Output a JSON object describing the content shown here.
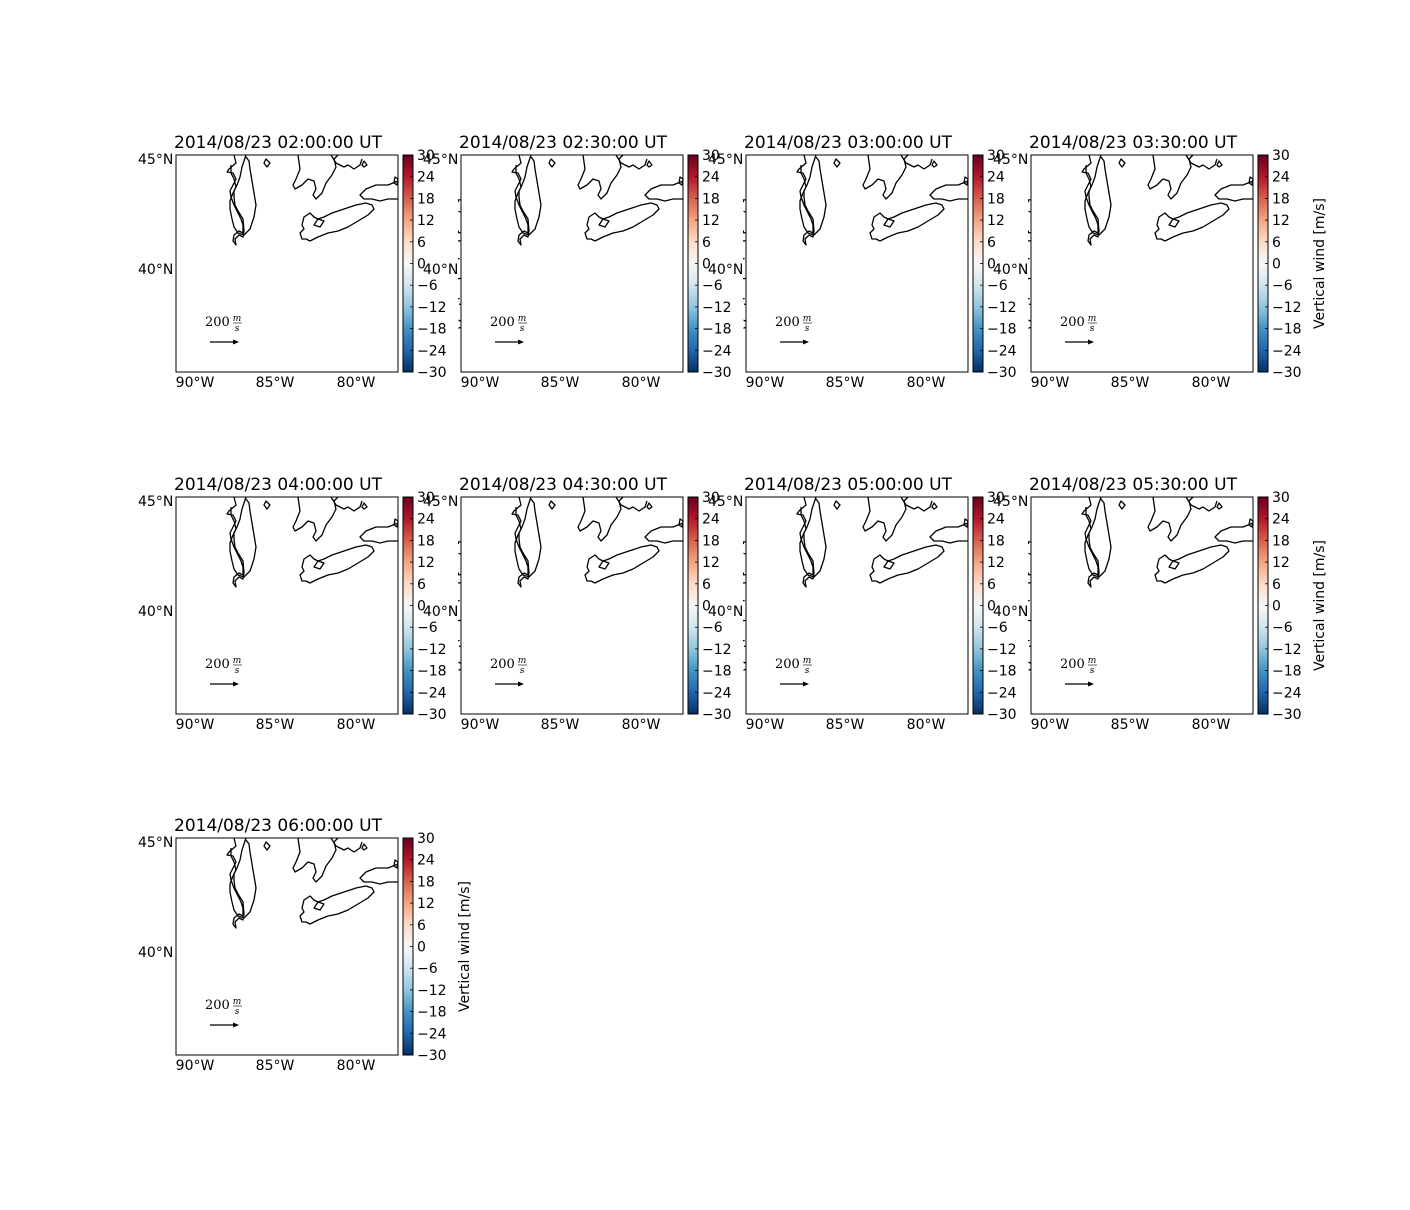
{
  "figure": {
    "colorbar_label": "Vertical wind [m/s]",
    "colorbar_ticks": [
      "30",
      "24",
      "18",
      "12",
      "6",
      "0",
      "−6",
      "−12",
      "−18",
      "−24",
      "−30"
    ],
    "colormap": [
      "#053061",
      "#2166ac",
      "#4393c3",
      "#92c5de",
      "#d1e5f0",
      "#f7f7f7",
      "#fddbc7",
      "#f4a582",
      "#d6604d",
      "#b2182b",
      "#67001f"
    ],
    "lat_labels": [
      "45°N",
      "40°N"
    ],
    "lon_labels": [
      "90°W",
      "85°W",
      "80°W"
    ],
    "quiver_key": {
      "value": "200",
      "unit_num": "m",
      "unit_den": "s"
    }
  },
  "panels": [
    {
      "title": "2014/08/23 02:00:00 UT"
    },
    {
      "title": "2014/08/23 02:30:00 UT"
    },
    {
      "title": "2014/08/23 03:00:00 UT"
    },
    {
      "title": "2014/08/23 03:30:00 UT"
    },
    {
      "title": "2014/08/23 04:00:00 UT"
    },
    {
      "title": "2014/08/23 04:30:00 UT"
    },
    {
      "title": "2014/08/23 05:00:00 UT"
    },
    {
      "title": "2014/08/23 05:30:00 UT"
    },
    {
      "title": "2014/08/23 06:00:00 UT"
    }
  ]
}
